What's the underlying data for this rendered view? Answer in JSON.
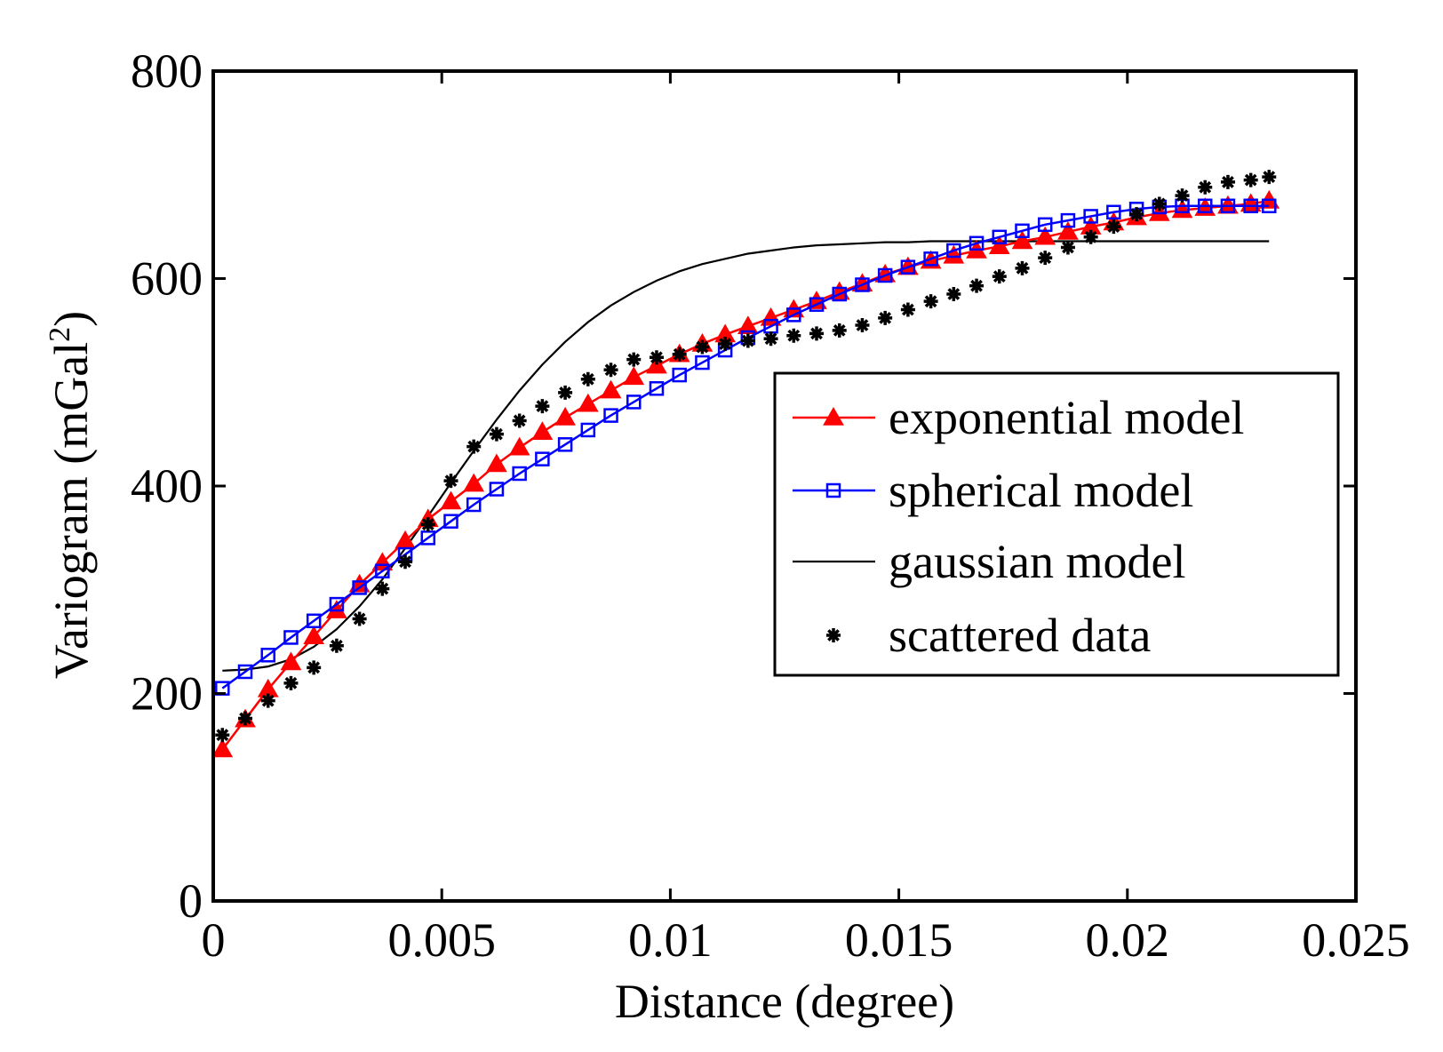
{
  "chart_data": {
    "type": "line",
    "xlabel": "Distance (degree)",
    "ylabel": "Variogram (mGal",
    "ylabel_sup": "2",
    "ylabel_close": ")",
    "xlim": [
      0,
      0.025
    ],
    "ylim": [
      0,
      800
    ],
    "xticks": [
      0,
      0.005,
      0.01,
      0.015,
      0.02,
      0.025
    ],
    "xtick_labels": [
      "0",
      "0.005",
      "0.01",
      "0.015",
      "0.02",
      "0.025"
    ],
    "yticks": [
      0,
      200,
      400,
      600,
      800
    ],
    "ytick_labels": [
      "0",
      "200",
      "400",
      "600",
      "800"
    ],
    "grid": false,
    "legend_position": "right-center",
    "x": [
      0.0002,
      0.0007,
      0.0012,
      0.0017,
      0.0022,
      0.0027,
      0.0032,
      0.0037,
      0.0042,
      0.0047,
      0.0052,
      0.0057,
      0.0062,
      0.0067,
      0.0072,
      0.0077,
      0.0082,
      0.0087,
      0.0092,
      0.0097,
      0.0102,
      0.0107,
      0.0112,
      0.0117,
      0.0122,
      0.0127,
      0.0132,
      0.0137,
      0.0142,
      0.0147,
      0.0152,
      0.0157,
      0.0162,
      0.0167,
      0.0172,
      0.0177,
      0.0182,
      0.0187,
      0.0192,
      0.0197,
      0.0202,
      0.0207,
      0.0212,
      0.0217,
      0.0222,
      0.0227,
      0.0231
    ],
    "series": [
      {
        "name": "exponential model",
        "color": "#ff0000",
        "marker": "triangle",
        "values": [
          146,
          175,
          204,
          230,
          255,
          280,
          305,
          326,
          347,
          368,
          385,
          402,
          421,
          437,
          452,
          466,
          479,
          492,
          505,
          516,
          527,
          537,
          546,
          554,
          562,
          570,
          578,
          587,
          595,
          604,
          611,
          617,
          622,
          627,
          631,
          636,
          640,
          645,
          650,
          654,
          659,
          663,
          666,
          668,
          670,
          672,
          675
        ]
      },
      {
        "name": "spherical model",
        "color": "#0000ff",
        "marker": "square",
        "values": [
          205,
          221,
          237,
          254,
          270,
          286,
          302,
          318,
          334,
          350,
          366,
          382,
          397,
          412,
          426,
          440,
          454,
          468,
          481,
          494,
          507,
          519,
          531,
          543,
          554,
          565,
          575,
          585,
          594,
          603,
          611,
          619,
          627,
          634,
          640,
          646,
          652,
          656,
          660,
          664,
          667,
          669,
          670,
          670,
          670,
          670,
          670
        ]
      },
      {
        "name": "gaussian model",
        "color": "#000000",
        "marker": "none",
        "values": [
          222,
          223,
          226,
          233,
          245,
          262,
          284,
          310,
          340,
          371,
          403,
          434,
          464,
          492,
          517,
          539,
          558,
          574,
          587,
          598,
          607,
          614,
          619,
          624,
          627,
          630,
          632,
          633,
          634,
          635,
          635,
          636,
          636,
          636,
          636,
          636,
          636,
          636,
          636,
          636,
          636,
          636,
          636,
          636,
          636,
          636,
          636
        ]
      },
      {
        "name": "scattered data",
        "color": "#000000",
        "marker": "star",
        "values": [
          160,
          176,
          193,
          210,
          225,
          246,
          272,
          301,
          327,
          363,
          405,
          438,
          450,
          463,
          477,
          490,
          503,
          512,
          522,
          524,
          527,
          534,
          537,
          540,
          542,
          545,
          547,
          550,
          555,
          562,
          570,
          578,
          585,
          593,
          602,
          610,
          620,
          630,
          640,
          650,
          662,
          672,
          680,
          688,
          693,
          695,
          698
        ]
      }
    ]
  }
}
